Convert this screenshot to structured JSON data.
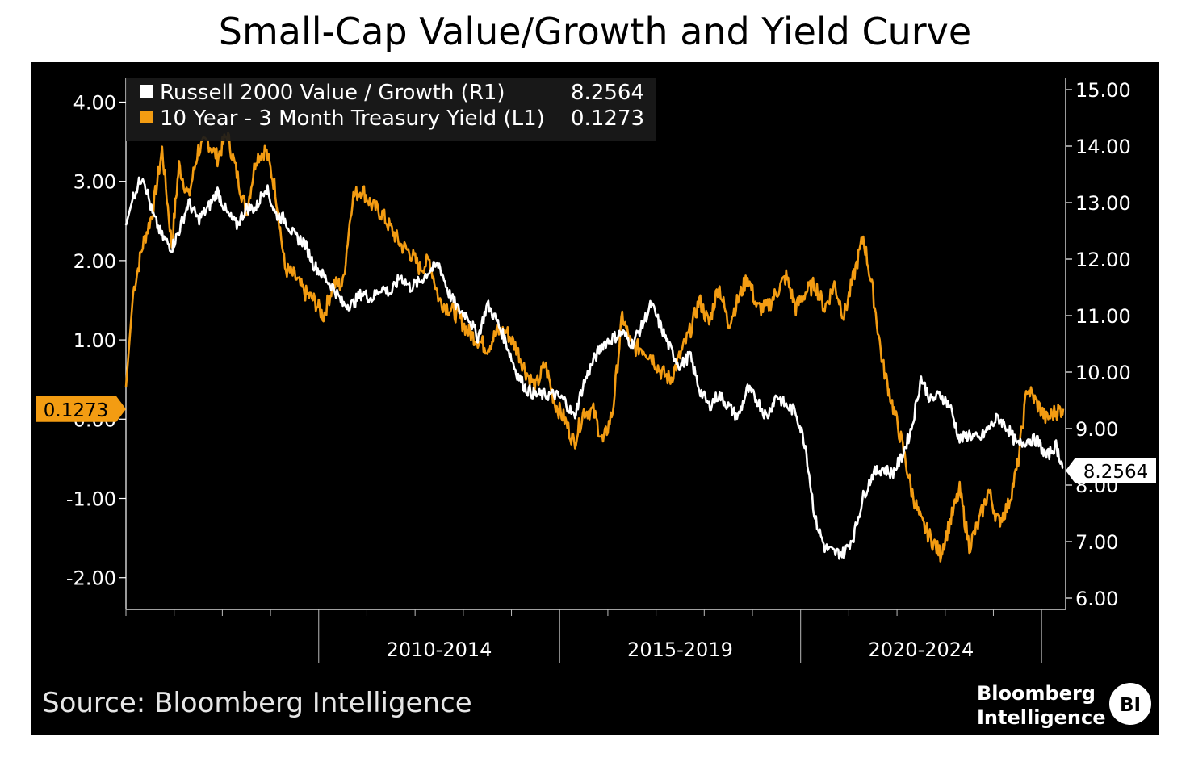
{
  "chart_data": {
    "type": "line",
    "title": "Small-Cap Value/Growth and Yield Curve",
    "source": "Source: Bloomberg Intelligence",
    "brand": {
      "line1": "Bloomberg",
      "line2": "Intelligence",
      "badge": "BI"
    },
    "colors": {
      "value_growth": "#ffffff",
      "yield": "#f39c12",
      "background": "#000000"
    },
    "x_categories": [
      "2010-2014",
      "2015-2019",
      "2020-2024"
    ],
    "x_range": [
      2005.0,
      2024.5
    ],
    "left_axis": {
      "ylim": [
        -2.4,
        4.3
      ],
      "ticks": [
        4.0,
        3.0,
        2.0,
        1.0,
        0.0,
        -1.0,
        -2.0
      ],
      "tick_labels": [
        "4.00",
        "3.00",
        "2.00",
        "1.00",
        "0.00",
        "-1.00",
        "-2.00"
      ]
    },
    "right_axis": {
      "ylim": [
        5.8,
        15.2
      ],
      "ticks": [
        15.0,
        14.0,
        13.0,
        12.0,
        11.0,
        10.0,
        9.0,
        8.0,
        7.0,
        6.0
      ],
      "tick_labels": [
        "15.00",
        "14.00",
        "13.00",
        "12.00",
        "11.00",
        "10.00",
        "9.00",
        "8.00",
        "7.00",
        "6.00"
      ]
    },
    "legend_position": "top-left",
    "series": [
      {
        "name": "Russell 2000 Value / Growth (R1)",
        "last_value": "8.2564",
        "axis": "right",
        "x": [
          2005.0,
          2005.15,
          2005.35,
          2005.55,
          2005.75,
          2005.95,
          2006.1,
          2006.3,
          2006.5,
          2006.7,
          2006.9,
          2007.1,
          2007.3,
          2007.5,
          2007.7,
          2007.9,
          2008.1,
          2008.3,
          2008.5,
          2008.7,
          2008.9,
          2009.1,
          2009.3,
          2009.5,
          2009.7,
          2009.9,
          2010.1,
          2010.3,
          2010.5,
          2010.7,
          2010.9,
          2011.1,
          2011.3,
          2011.5,
          2011.7,
          2011.9,
          2012.1,
          2012.3,
          2012.5,
          2012.7,
          2012.9,
          2013.1,
          2013.3,
          2013.5,
          2013.7,
          2013.9,
          2014.1,
          2014.3,
          2014.5,
          2014.7,
          2014.9,
          2015.1,
          2015.3,
          2015.5,
          2015.7,
          2015.9,
          2016.1,
          2016.3,
          2016.5,
          2016.7,
          2016.9,
          2017.1,
          2017.3,
          2017.5,
          2017.7,
          2017.9,
          2018.1,
          2018.3,
          2018.5,
          2018.7,
          2018.9,
          2019.1,
          2019.3,
          2019.5,
          2019.7,
          2019.9,
          2020.1,
          2020.3,
          2020.5,
          2020.7,
          2020.9,
          2021.1,
          2021.3,
          2021.5,
          2021.7,
          2021.9,
          2022.1,
          2022.3,
          2022.5,
          2022.7,
          2022.9,
          2023.1,
          2023.3,
          2023.5,
          2023.7,
          2023.9,
          2024.1,
          2024.3,
          2024.45
        ],
        "y": [
          12.6,
          13.1,
          13.5,
          12.8,
          12.4,
          12.2,
          12.5,
          13.0,
          12.7,
          12.9,
          13.2,
          12.8,
          12.6,
          12.9,
          12.9,
          13.3,
          12.8,
          12.7,
          12.4,
          12.3,
          11.9,
          11.7,
          11.5,
          11.2,
          11.2,
          11.4,
          11.3,
          11.5,
          11.4,
          11.7,
          11.5,
          11.6,
          11.8,
          11.9,
          11.4,
          11.1,
          11.0,
          10.6,
          11.2,
          10.9,
          10.5,
          10.0,
          9.7,
          9.6,
          9.6,
          9.6,
          9.5,
          9.2,
          9.8,
          10.2,
          10.5,
          10.6,
          10.7,
          10.5,
          10.8,
          11.2,
          10.8,
          10.4,
          10.1,
          10.3,
          9.7,
          9.4,
          9.6,
          9.4,
          9.2,
          9.7,
          9.5,
          9.2,
          9.6,
          9.4,
          9.3,
          8.7,
          7.4,
          6.9,
          6.8,
          6.8,
          7.1,
          7.8,
          8.2,
          8.3,
          8.2,
          8.5,
          9.0,
          9.9,
          9.5,
          9.6,
          9.4,
          8.8,
          8.9,
          8.8,
          9.0,
          9.2,
          9.0,
          8.7,
          8.8,
          8.8,
          8.5,
          8.7,
          8.3
        ]
      },
      {
        "name": "10 Year - 3 Month Treasury Yield (L1)",
        "last_value": "0.1273",
        "axis": "left",
        "x": [
          2005.0,
          2005.15,
          2005.35,
          2005.55,
          2005.75,
          2005.95,
          2006.1,
          2006.3,
          2006.5,
          2006.7,
          2006.9,
          2007.1,
          2007.3,
          2007.5,
          2007.7,
          2007.9,
          2008.1,
          2008.3,
          2008.5,
          2008.7,
          2008.9,
          2009.1,
          2009.3,
          2009.5,
          2009.7,
          2009.9,
          2010.1,
          2010.3,
          2010.5,
          2010.7,
          2010.9,
          2011.1,
          2011.3,
          2011.5,
          2011.7,
          2011.9,
          2012.1,
          2012.3,
          2012.5,
          2012.7,
          2012.9,
          2013.1,
          2013.3,
          2013.5,
          2013.7,
          2013.9,
          2014.1,
          2014.3,
          2014.5,
          2014.7,
          2014.9,
          2015.1,
          2015.3,
          2015.5,
          2015.7,
          2015.9,
          2016.1,
          2016.3,
          2016.5,
          2016.7,
          2016.9,
          2017.1,
          2017.3,
          2017.5,
          2017.7,
          2017.9,
          2018.1,
          2018.3,
          2018.5,
          2018.7,
          2018.9,
          2019.1,
          2019.3,
          2019.5,
          2019.7,
          2019.9,
          2020.1,
          2020.3,
          2020.5,
          2020.7,
          2020.9,
          2021.1,
          2021.3,
          2021.5,
          2021.7,
          2021.9,
          2022.1,
          2022.3,
          2022.5,
          2022.7,
          2022.9,
          2023.1,
          2023.3,
          2023.5,
          2023.7,
          2023.9,
          2024.1,
          2024.3,
          2024.45
        ],
        "y": [
          0.4,
          1.6,
          2.2,
          2.6,
          3.4,
          2.2,
          3.2,
          2.8,
          3.4,
          3.5,
          3.3,
          3.6,
          3.1,
          2.6,
          3.3,
          3.4,
          2.9,
          1.9,
          1.8,
          1.6,
          1.5,
          1.3,
          1.7,
          1.7,
          2.8,
          2.9,
          2.7,
          2.6,
          2.4,
          2.2,
          2.1,
          1.9,
          2.0,
          1.5,
          1.4,
          1.3,
          1.1,
          1.0,
          0.9,
          1.1,
          1.1,
          0.9,
          0.6,
          0.4,
          0.7,
          0.2,
          0.0,
          -0.3,
          0.1,
          0.1,
          -0.3,
          0.1,
          1.3,
          0.9,
          0.9,
          0.8,
          0.6,
          0.5,
          0.8,
          1.1,
          1.5,
          1.2,
          1.7,
          1.2,
          1.5,
          1.8,
          1.4,
          1.4,
          1.6,
          1.8,
          1.4,
          1.6,
          1.7,
          1.4,
          1.7,
          1.3,
          1.8,
          2.3,
          1.6,
          0.7,
          0.2,
          -0.3,
          -0.9,
          -1.3,
          -1.5,
          -1.7,
          -1.3,
          -0.9,
          -1.6,
          -1.3,
          -0.9,
          -1.3,
          -1.1,
          -0.6,
          0.4,
          0.2,
          0.0,
          0.1,
          0.13
        ]
      }
    ]
  }
}
